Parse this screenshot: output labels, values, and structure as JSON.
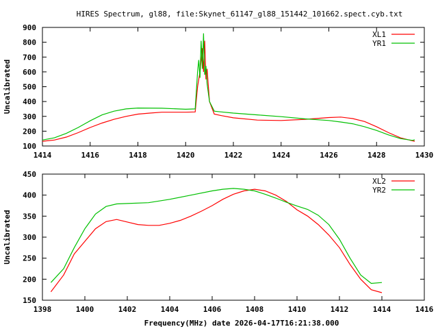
{
  "title": "HIRES Spectrum, gl88, file:Skynet_61147_gl88_151442_101662.spect.cyb.txt",
  "chart_data": [
    {
      "type": "line",
      "xlabel": "",
      "ylabel": "Uncalibrated",
      "xlim": [
        1414,
        1430
      ],
      "ylim": [
        100,
        900
      ],
      "xticks": [
        1414,
        1416,
        1418,
        1420,
        1422,
        1424,
        1426,
        1428,
        1430
      ],
      "yticks": [
        100,
        200,
        300,
        400,
        500,
        600,
        700,
        800,
        900
      ],
      "legend": "top-right",
      "grid": false,
      "series": [
        {
          "name": "XL1",
          "color": "#ff0000",
          "x": [
            1414,
            1414.5,
            1415,
            1415.5,
            1416,
            1416.5,
            1417,
            1417.5,
            1418,
            1418.5,
            1419,
            1420,
            1420.4,
            1420.5,
            1420.6,
            1420.7,
            1420.75,
            1420.8,
            1420.85,
            1420.9,
            1421,
            1421.2,
            1421.5,
            1422,
            1423,
            1424,
            1425,
            1426,
            1426.5,
            1427,
            1427.5,
            1428,
            1428.5,
            1429,
            1429.5,
            1429.6
          ],
          "y": [
            132,
            140,
            160,
            190,
            225,
            255,
            280,
            300,
            315,
            322,
            328,
            328,
            330,
            500,
            600,
            760,
            600,
            810,
            550,
            620,
            400,
            315,
            305,
            290,
            275,
            272,
            280,
            292,
            295,
            285,
            265,
            230,
            190,
            155,
            135,
            132
          ]
        },
        {
          "name": "YR1",
          "color": "#00c000",
          "x": [
            1414,
            1414.5,
            1415,
            1415.5,
            1416,
            1416.5,
            1417,
            1417.5,
            1418,
            1419,
            1420,
            1420.4,
            1420.5,
            1420.55,
            1420.6,
            1420.65,
            1420.7,
            1420.75,
            1420.8,
            1420.85,
            1420.9,
            1421,
            1421.2,
            1421.5,
            1422,
            1423,
            1424,
            1425,
            1426,
            1426.5,
            1427,
            1427.5,
            1428,
            1428.5,
            1429,
            1429.5,
            1429.6
          ],
          "y": [
            140,
            155,
            185,
            225,
            270,
            310,
            335,
            350,
            356,
            355,
            348,
            350,
            600,
            680,
            560,
            810,
            620,
            860,
            580,
            640,
            520,
            400,
            335,
            330,
            322,
            310,
            298,
            283,
            272,
            262,
            250,
            230,
            205,
            175,
            150,
            138,
            142
          ]
        }
      ]
    },
    {
      "type": "line",
      "xlabel": "Frequency(MHz) date 2026-04-17T16:21:38.000",
      "ylabel": "Uncalibrated",
      "xlim": [
        1398,
        1416
      ],
      "ylim": [
        150,
        450
      ],
      "xticks": [
        1398,
        1400,
        1402,
        1404,
        1406,
        1408,
        1410,
        1412,
        1414,
        1416
      ],
      "yticks": [
        150,
        200,
        250,
        300,
        350,
        400,
        450
      ],
      "legend": "top-right",
      "grid": false,
      "series": [
        {
          "name": "XL2",
          "color": "#ff0000",
          "x": [
            1398.4,
            1399,
            1399.5,
            1400,
            1400.5,
            1401,
            1401.5,
            1402,
            1402.5,
            1403,
            1403.5,
            1404,
            1404.5,
            1405,
            1405.5,
            1406,
            1406.5,
            1407,
            1407.5,
            1408,
            1408.5,
            1409,
            1409.5,
            1410,
            1410.5,
            1411,
            1411.5,
            1412,
            1412.5,
            1413,
            1413.5,
            1414
          ],
          "y": [
            170,
            210,
            260,
            290,
            320,
            337,
            342,
            336,
            330,
            328,
            328,
            333,
            340,
            350,
            362,
            375,
            390,
            402,
            410,
            414,
            410,
            400,
            385,
            365,
            350,
            330,
            305,
            275,
            235,
            200,
            175,
            168
          ]
        },
        {
          "name": "YR2",
          "color": "#00c000",
          "x": [
            1398.4,
            1399,
            1399.5,
            1400,
            1400.5,
            1401,
            1401.5,
            1402,
            1403,
            1404,
            1405,
            1406,
            1406.5,
            1407,
            1407.5,
            1408,
            1408.5,
            1409,
            1409.5,
            1410,
            1410.5,
            1411,
            1411.5,
            1412,
            1412.5,
            1413,
            1413.5,
            1414
          ],
          "y": [
            192,
            225,
            275,
            320,
            355,
            373,
            379,
            380,
            382,
            390,
            400,
            410,
            414,
            416,
            414,
            410,
            402,
            393,
            383,
            374,
            366,
            352,
            330,
            295,
            250,
            210,
            190,
            192
          ]
        }
      ]
    }
  ]
}
